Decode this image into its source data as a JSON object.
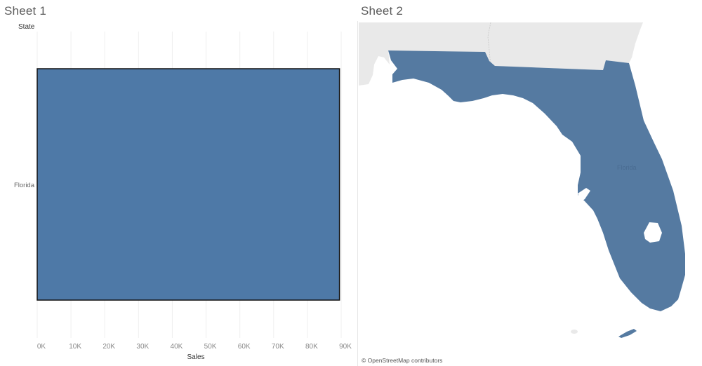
{
  "sheet1": {
    "title": "Sheet 1",
    "row_header": "State",
    "row_label": "Florida",
    "x_axis_title": "Sales"
  },
  "sheet2": {
    "title": "Sheet 2",
    "attribution": "© OpenStreetMap contributors",
    "map_label": "Florida"
  },
  "colors": {
    "bar_fill": "#4e79a7",
    "map_fill": "#557aa1",
    "land": "#e9e9e9",
    "water": "#ffffff"
  },
  "chart_data": {
    "type": "bar",
    "orientation": "horizontal",
    "categories": [
      "Florida"
    ],
    "values": [
      89500
    ],
    "title": "Sheet 1",
    "xlabel": "Sales",
    "ylabel": "State",
    "xlim": [
      0,
      90000
    ],
    "x_ticks": [
      "0K",
      "10K",
      "20K",
      "30K",
      "40K",
      "50K",
      "60K",
      "70K",
      "80K",
      "90K"
    ],
    "grid": "vertical"
  }
}
